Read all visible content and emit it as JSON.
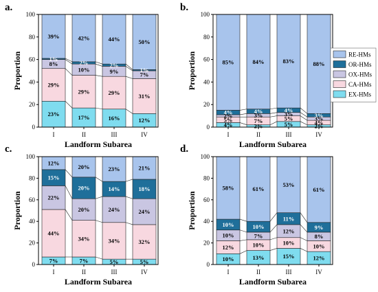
{
  "chart_data": [
    {
      "panel": "a.",
      "type": "bar",
      "stacked": true,
      "xlabel": "Landform Subarea",
      "ylabel": "Proportion",
      "ylim": [
        0,
        100
      ],
      "yticks": [
        0,
        20,
        40,
        60,
        80,
        100
      ],
      "categories": [
        "I",
        "II",
        "III",
        "IV"
      ],
      "series": [
        {
          "name": "EX-HMs",
          "color": "#7fdcef",
          "values": [
            23,
            17,
            16,
            12
          ],
          "labels": [
            "23%",
            "17%",
            "16%",
            "12%"
          ]
        },
        {
          "name": "CA-HMs",
          "color": "#f8d8e0",
          "values": [
            29,
            29,
            29,
            31
          ],
          "labels": [
            "29%",
            "29%",
            "29%",
            "31%"
          ]
        },
        {
          "name": "OX-HMs",
          "color": "#c9c6e2",
          "values": [
            8,
            10,
            9,
            7
          ],
          "labels": [
            "8%",
            "10%",
            "9%",
            "7%"
          ]
        },
        {
          "name": "OR-HMs",
          "color": "#1f6f9a",
          "values": [
            1,
            2,
            2,
            1
          ],
          "labels": [
            "1%",
            "2%",
            "2%",
            "1%"
          ]
        },
        {
          "name": "RE-HMs",
          "color": "#a8c4ec",
          "values": [
            39,
            42,
            44,
            50
          ],
          "labels": [
            "39%",
            "42%",
            "44%",
            "50%"
          ]
        }
      ]
    },
    {
      "panel": "b.",
      "type": "bar",
      "stacked": true,
      "xlabel": "Landform Subarea",
      "ylabel": "Proportion",
      "ylim": [
        0,
        100
      ],
      "yticks": [
        0,
        20,
        40,
        60,
        80,
        100
      ],
      "categories": [
        "I",
        "II",
        "III",
        "IV"
      ],
      "series": [
        {
          "name": "EX-HMs",
          "color": "#7fdcef",
          "values": [
            4,
            2,
            5,
            2
          ],
          "labels": [
            "4%",
            "2%",
            "5%",
            "2%"
          ]
        },
        {
          "name": "CA-HMs",
          "color": "#f8d8e0",
          "values": [
            5,
            7,
            5,
            4
          ],
          "labels": [
            "5%",
            "7%",
            "5%",
            "4%"
          ]
        },
        {
          "name": "OX-HMs",
          "color": "#c9c6e2",
          "values": [
            2,
            3,
            3,
            3
          ],
          "labels": [
            "2%",
            "3%",
            "3%",
            "3%"
          ]
        },
        {
          "name": "OR-HMs",
          "color": "#1f6f9a",
          "values": [
            4,
            4,
            4,
            3
          ],
          "labels": [
            "4%",
            "4%",
            "4%",
            "3%"
          ]
        },
        {
          "name": "RE-HMs",
          "color": "#a8c4ec",
          "values": [
            85,
            84,
            83,
            88
          ],
          "labels": [
            "85%",
            "84%",
            "83%",
            "88%"
          ]
        }
      ],
      "legend": {
        "position": "right",
        "order": [
          "RE-HMs",
          "OR-HMs",
          "OX-HMs",
          "CA-HMs",
          "EX-HMs"
        ]
      }
    },
    {
      "panel": "c.",
      "type": "bar",
      "stacked": true,
      "xlabel": "Landform Subarea",
      "ylabel": "Proportion",
      "ylim": [
        0,
        100
      ],
      "yticks": [
        0,
        20,
        40,
        60,
        80,
        100
      ],
      "categories": [
        "I",
        "II",
        "III",
        "IV"
      ],
      "series": [
        {
          "name": "EX-HMs",
          "color": "#7fdcef",
          "values": [
            7,
            7,
            5,
            5
          ],
          "labels": [
            "7%",
            "7%",
            "5%",
            "5%"
          ]
        },
        {
          "name": "CA-HMs",
          "color": "#f8d8e0",
          "values": [
            44,
            34,
            34,
            32
          ],
          "labels": [
            "44%",
            "34%",
            "34%",
            "32%"
          ]
        },
        {
          "name": "OX-HMs",
          "color": "#c9c6e2",
          "values": [
            22,
            20,
            24,
            24
          ],
          "labels": [
            "22%",
            "20%",
            "24%",
            "24%"
          ]
        },
        {
          "name": "OR-HMs",
          "color": "#1f6f9a",
          "values": [
            15,
            20,
            14,
            18
          ],
          "labels": [
            "15%",
            "20%",
            "14%",
            "18%"
          ]
        },
        {
          "name": "RE-HMs",
          "color": "#a8c4ec",
          "values": [
            12,
            20,
            23,
            21
          ],
          "labels": [
            "12%",
            "20%",
            "23%",
            "21%"
          ]
        }
      ]
    },
    {
      "panel": "d.",
      "type": "bar",
      "stacked": true,
      "xlabel": "Landform Subarea",
      "ylabel": "Proportion",
      "ylim": [
        0,
        100
      ],
      "yticks": [
        0,
        20,
        40,
        60,
        80,
        100
      ],
      "categories": [
        "I",
        "II",
        "III",
        "IV"
      ],
      "series": [
        {
          "name": "EX-HMs",
          "color": "#7fdcef",
          "values": [
            10,
            13,
            15,
            12
          ],
          "labels": [
            "10%",
            "13%",
            "15%",
            "12%"
          ]
        },
        {
          "name": "CA-HMs",
          "color": "#f8d8e0",
          "values": [
            12,
            10,
            10,
            10
          ],
          "labels": [
            "12%",
            "10%",
            "10%",
            "10%"
          ]
        },
        {
          "name": "OX-HMs",
          "color": "#c9c6e2",
          "values": [
            10,
            7,
            12,
            8
          ],
          "labels": [
            "10%",
            "7%",
            "12%",
            "8%"
          ]
        },
        {
          "name": "OR-HMs",
          "color": "#1f6f9a",
          "values": [
            10,
            10,
            11,
            9
          ],
          "labels": [
            "10%",
            "10%",
            "11%",
            "9%"
          ]
        },
        {
          "name": "RE-HMs",
          "color": "#a8c4ec",
          "values": [
            58,
            61,
            53,
            61
          ],
          "labels": [
            "58%",
            "61%",
            "53%",
            "61%"
          ]
        }
      ]
    }
  ]
}
